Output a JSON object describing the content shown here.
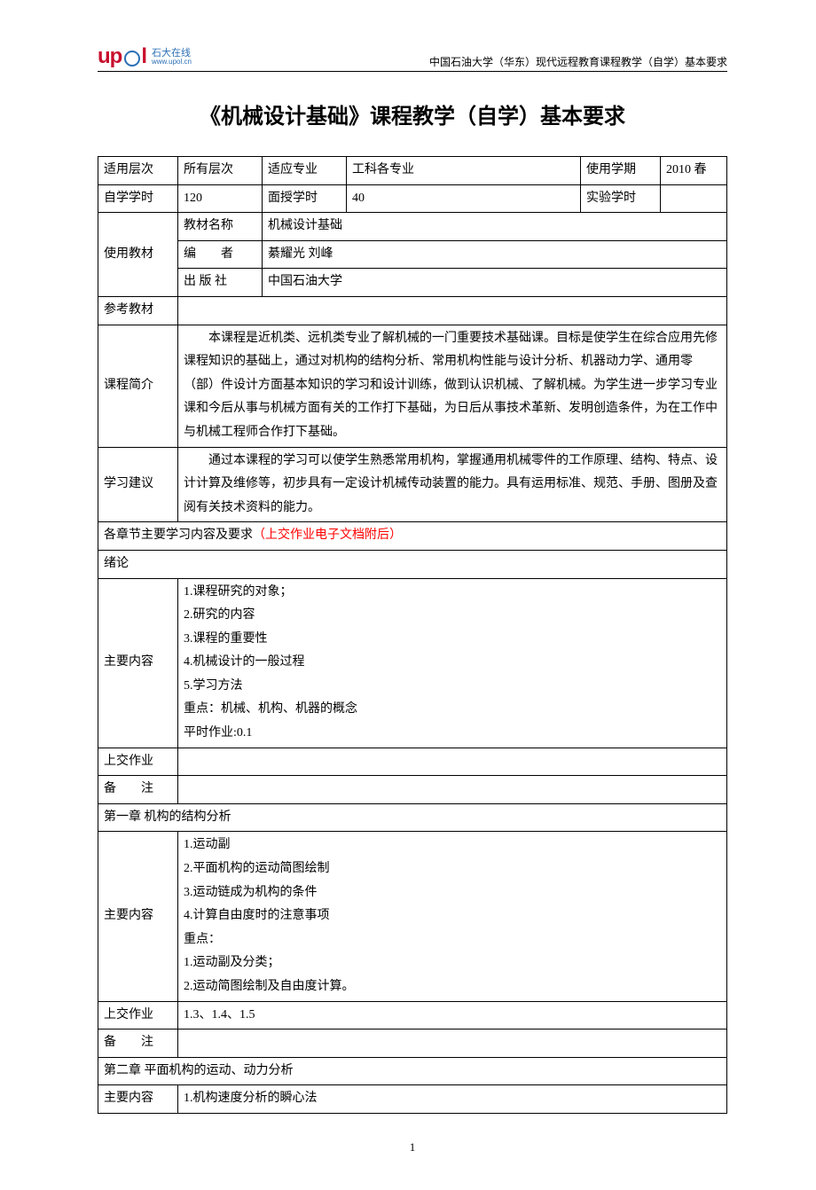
{
  "header": {
    "logo_up": "up",
    "logo_l": "l",
    "logo_cn_top": "石大在线",
    "logo_cn_bot": "www.upol.cn",
    "right_text": "中国石油大学（华东）现代远程教育课程教学（自学）基本要求"
  },
  "title": "《机械设计基础》课程教学（自学）基本要求",
  "info": {
    "labels": {
      "level": "适用层次",
      "major": "适应专业",
      "term": "使用学期",
      "self_hours": "自学学时",
      "face_hours": "面授学时",
      "exp_hours": "实验学时",
      "textbook": "使用教材",
      "tb_name": "教材名称",
      "tb_author": "编　　者",
      "tb_press": "出 版 社",
      "ref": "参考教材",
      "intro": "课程简介",
      "advice": "学习建议"
    },
    "level": "所有层次",
    "major": "工科各专业",
    "term": "2010 春",
    "self_hours": "120",
    "face_hours": "40",
    "exp_hours": "",
    "tb_name": "机械设计基础",
    "tb_author": "綦耀光 刘峰",
    "tb_press": "中国石油大学",
    "ref": "",
    "intro": "本课程是近机类、远机类专业了解机械的一门重要技术基础课。目标是使学生在综合应用先修课程知识的基础上，通过对机构的结构分析、常用机构性能与设计分析、机器动力学、通用零（部）件设计方面基本知识的学习和设计训练，做到认识机械、了解机械。为学生进一步学习专业课和今后从事与机械方面有关的工作打下基础，为日后从事技术革新、发明创造条件，为在工作中与机械工程师合作打下基础。",
    "advice": "通过本课程的学习可以使学生熟悉常用机构，掌握通用机械零件的工作原理、结构、特点、设计计算及维修等，初步具有一定设计机械传动装置的能力。具有运用标准、规范、手册、图册及查阅有关技术资料的能力。"
  },
  "section_title_black": "各章节主要学习内容及要求",
  "section_title_red": "（上交作业电子文档附后）",
  "labels": {
    "main_content": "主要内容",
    "submit": "上交作业",
    "note": "备　　注"
  },
  "chapters": [
    {
      "title": "绪论",
      "content": "1.课程研究的对象；\n2.研究的内容\n3.课程的重要性\n4.机械设计的一般过程\n5.学习方法\n重点：机械、机构、机器的概念\n平时作业:0.1",
      "submit": "",
      "note": ""
    },
    {
      "title": "第一章 机构的结构分析",
      "content": "1.运动副\n2.平面机构的运动简图绘制\n3.运动链成为机构的条件\n4.计算自由度时的注意事项\n重点：\n1.运动副及分类；\n2.运动简图绘制及自由度计算。",
      "submit": "1.3、1.4、1.5",
      "note": ""
    },
    {
      "title": "第二章 平面机构的运动、动力分析",
      "content": "1.机构速度分析的瞬心法"
    }
  ],
  "page_number": "1",
  "colors": {
    "accent_red": "#ff0000",
    "logo_red": "#c8102e",
    "logo_blue": "#2a6fb5",
    "text": "#000000",
    "bg": "#ffffff"
  }
}
